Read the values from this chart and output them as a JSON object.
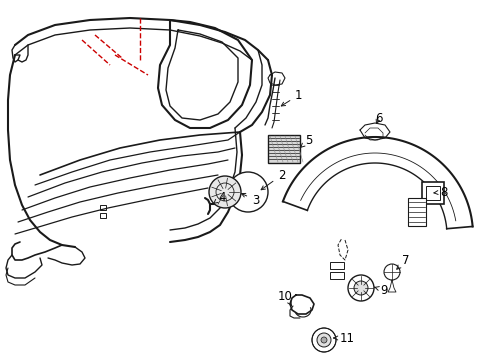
{
  "background_color": "#ffffff",
  "line_color": "#1a1a1a",
  "red_color": "#cc0000",
  "label_color": "#000000",
  "figsize": [
    4.89,
    3.6
  ],
  "dpi": 100,
  "xlim": [
    0,
    489
  ],
  "ylim": [
    0,
    360
  ]
}
